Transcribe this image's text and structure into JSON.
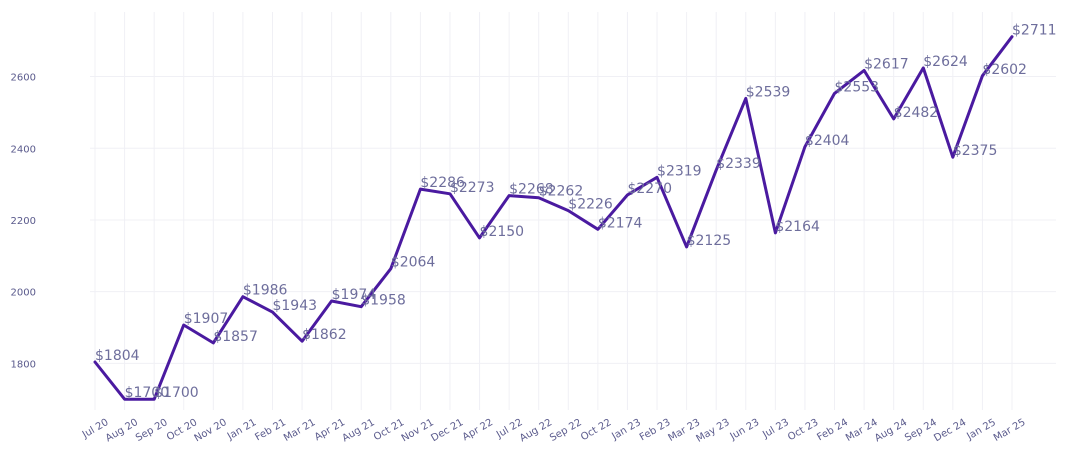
{
  "chart_data": {
    "type": "line",
    "title": "",
    "xlabel": "",
    "ylabel": "",
    "ylim": [
      1670,
      2780
    ],
    "yticks": [
      1800,
      2000,
      2200,
      2400,
      2600
    ],
    "grid": true,
    "line_color": "#4a1aa0",
    "categories": [
      "Jul 20",
      "Aug 20",
      "Sep 20",
      "Oct 20",
      "Nov 20",
      "Jan 21",
      "Feb 21",
      "Mar 21",
      "Apr 21",
      "Aug 21",
      "Oct 21",
      "Nov 21",
      "Dec 21",
      "Apr 22",
      "Jul 22",
      "Aug 22",
      "Sep 22",
      "Oct 22",
      "Jan 23",
      "Feb 23",
      "Mar 23",
      "May 23",
      "Jun 23",
      "Jul 23",
      "Oct 23",
      "Feb 24",
      "Mar 24",
      "Aug 24",
      "Sep 24",
      "Dec 24",
      "Jan 25",
      "Mar 25"
    ],
    "values": [
      1804,
      1700,
      1700,
      1907,
      1857,
      1986,
      1943,
      1862,
      1974,
      1958,
      2064,
      2286,
      2273,
      2150,
      2268,
      2262,
      2226,
      2174,
      2270,
      2319,
      2125,
      2339,
      2539,
      2164,
      2404,
      2553,
      2617,
      2482,
      2624,
      2375,
      2602,
      2711
    ],
    "value_labels": [
      "$1804",
      "$1700",
      "$1700",
      "$1907",
      "$1857",
      "$1986",
      "$1943",
      "$1862",
      "$1974",
      "$1958",
      "$2064",
      "$2286",
      "$2273",
      "$2150",
      "$2268",
      "$2262",
      "$2226",
      "$2174",
      "$2270",
      "$2319",
      "$2125",
      "$2339",
      "$2539",
      "$2164",
      "$2404",
      "$2553",
      "$2617",
      "$2482",
      "$2624",
      "$2375",
      "$2602",
      "$2711"
    ]
  }
}
